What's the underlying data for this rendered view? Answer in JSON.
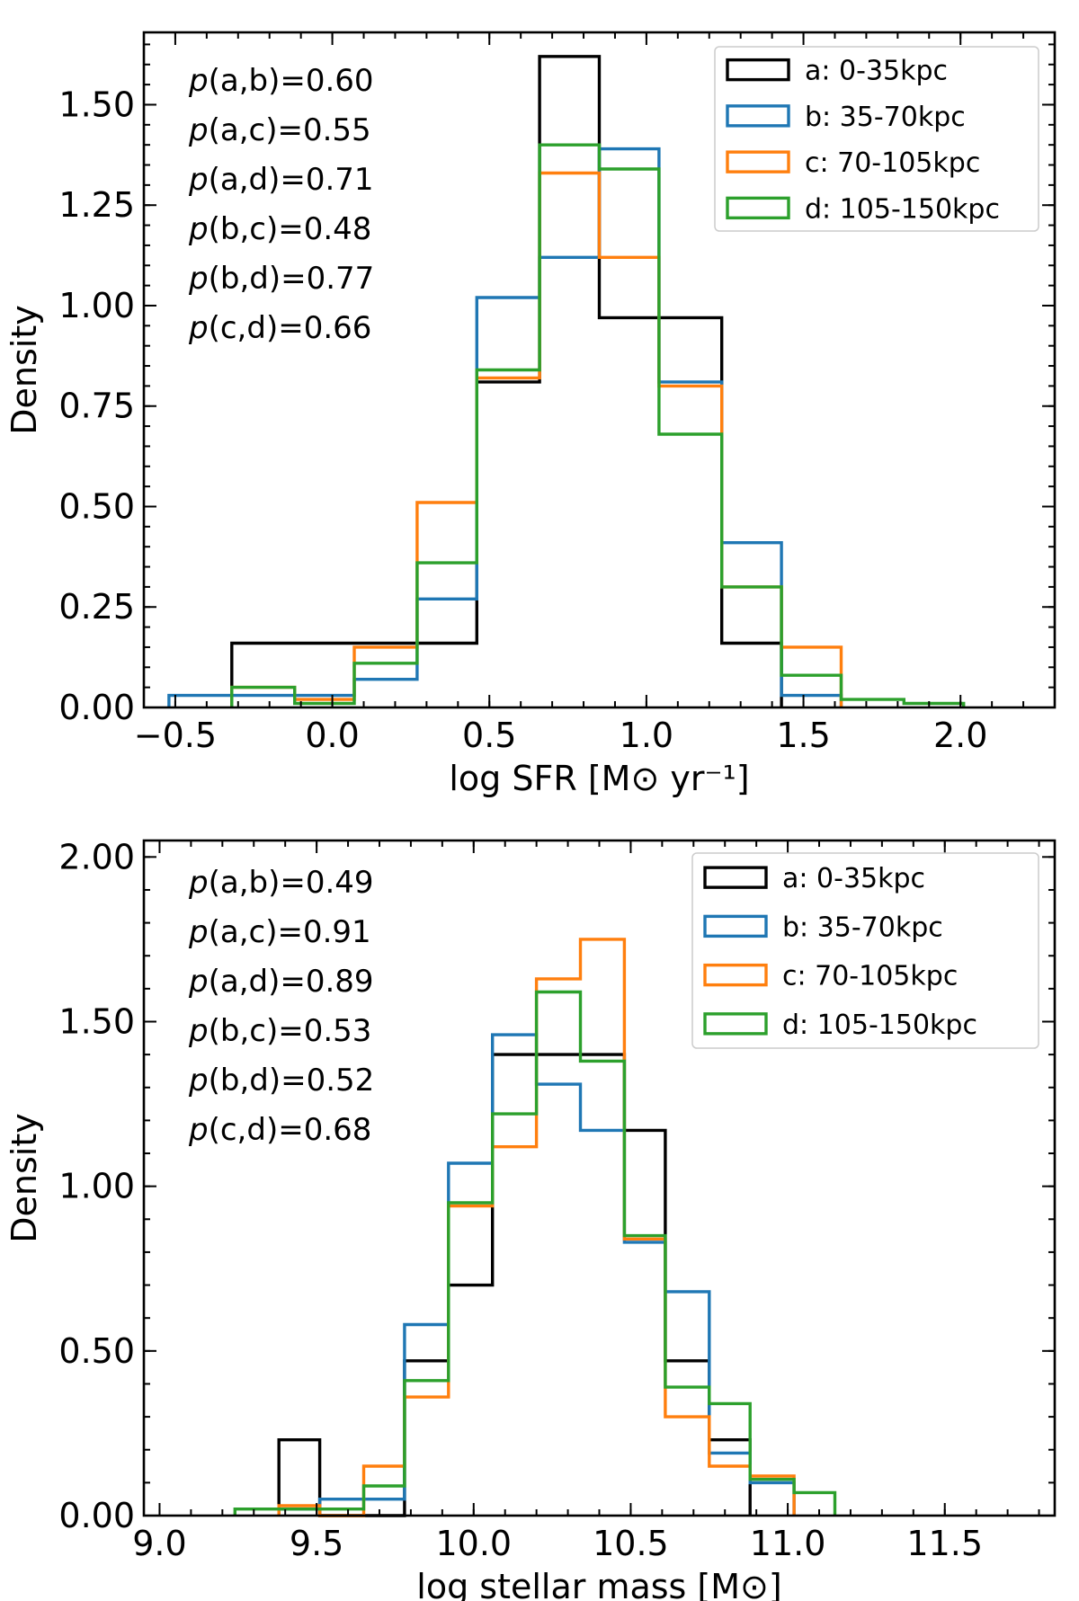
{
  "chart_data": [
    {
      "type": "histogram",
      "xlabel": "log SFR [M⊙ yr⁻¹]",
      "ylabel": "Density",
      "xlim": [
        -0.6,
        2.3
      ],
      "ylim": [
        0,
        1.68
      ],
      "xticks": [
        -0.5,
        0.0,
        0.5,
        1.0,
        1.5,
        2.0
      ],
      "xtick_labels": [
        "−0.5",
        "0.0",
        "0.5",
        "1.0",
        "1.5",
        "2.0"
      ],
      "yticks": [
        0.0,
        0.25,
        0.5,
        0.75,
        1.0,
        1.25,
        1.5
      ],
      "ytick_labels": [
        "0.00",
        "0.25",
        "0.50",
        "0.75",
        "1.00",
        "1.25",
        "1.50"
      ],
      "legend_position": "top-right",
      "annotations": [
        "(a,b)=0.60",
        "(a,c)=0.55",
        "(a,d)=0.71",
        "(b,c)=0.48",
        "(b,d)=0.77",
        "(c,d)=0.66"
      ],
      "annotation_prefix": "p",
      "series": [
        {
          "name": "a: 0-35kpc",
          "color": "#000000",
          "edges": [
            -0.32,
            -0.12,
            0.07,
            0.27,
            0.46,
            0.66,
            0.85,
            1.04,
            1.24,
            1.43
          ],
          "values": [
            0.16,
            0.16,
            0.16,
            0.16,
            0.81,
            1.62,
            0.97,
            0.97,
            0.16
          ]
        },
        {
          "name": "b: 35-70kpc",
          "color": "#1f77b4",
          "edges": [
            -0.52,
            -0.32,
            -0.12,
            0.07,
            0.27,
            0.46,
            0.66,
            0.85,
            1.04,
            1.24,
            1.43,
            1.62
          ],
          "values": [
            0.03,
            0.03,
            0.03,
            0.07,
            0.27,
            1.02,
            1.12,
            1.39,
            0.81,
            0.41,
            0.03
          ]
        },
        {
          "name": "c: 70-105kpc",
          "color": "#ff7f0e",
          "edges": [
            -0.32,
            -0.12,
            0.07,
            0.27,
            0.46,
            0.66,
            0.85,
            1.04,
            1.24,
            1.43,
            1.62
          ],
          "values": [
            0.05,
            0.02,
            0.15,
            0.51,
            0.82,
            1.33,
            1.12,
            0.8,
            0.3,
            0.15
          ]
        },
        {
          "name": "d: 105-150kpc",
          "color": "#2ca02c",
          "edges": [
            -0.32,
            -0.12,
            0.07,
            0.27,
            0.46,
            0.66,
            0.85,
            1.04,
            1.24,
            1.43,
            1.62,
            1.82,
            2.01
          ],
          "values": [
            0.05,
            0.01,
            0.11,
            0.36,
            0.84,
            1.4,
            1.34,
            0.68,
            0.3,
            0.08,
            0.02,
            0.01
          ]
        }
      ]
    },
    {
      "type": "histogram",
      "xlabel": "log stellar mass [M⊙]",
      "ylabel": "Density",
      "xlim": [
        8.95,
        11.85
      ],
      "ylim": [
        0,
        2.05
      ],
      "xticks": [
        9.0,
        9.5,
        10.0,
        10.5,
        11.0,
        11.5
      ],
      "xtick_labels": [
        "9.0",
        "9.5",
        "10.0",
        "10.5",
        "11.0",
        "11.5"
      ],
      "yticks": [
        0.0,
        0.5,
        1.0,
        1.5,
        2.0
      ],
      "ytick_labels": [
        "0.00",
        "0.50",
        "1.00",
        "1.50",
        "2.00"
      ],
      "legend_position": "top-right",
      "annotations": [
        "(a,b)=0.49",
        "(a,c)=0.91",
        "(a,d)=0.89",
        "(b,c)=0.53",
        "(b,d)=0.52",
        "(c,d)=0.68"
      ],
      "annotation_prefix": "p",
      "series": [
        {
          "name": "a: 0-35kpc",
          "color": "#000000",
          "edges": [
            9.38,
            9.51,
            9.65,
            9.78,
            9.92,
            10.06,
            10.2,
            10.34,
            10.48,
            10.61,
            10.75,
            10.88
          ],
          "values": [
            0.23,
            0.0,
            0.0,
            0.47,
            0.7,
            1.4,
            1.4,
            1.4,
            1.17,
            0.47,
            0.23
          ]
        },
        {
          "name": "b: 35-70kpc",
          "color": "#1f77b4",
          "edges": [
            9.38,
            9.51,
            9.65,
            9.78,
            9.92,
            10.06,
            10.2,
            10.34,
            10.48,
            10.61,
            10.75,
            10.88,
            11.02
          ],
          "values": [
            0.02,
            0.05,
            0.05,
            0.58,
            1.07,
            1.46,
            1.31,
            1.17,
            0.83,
            0.68,
            0.19,
            0.1
          ]
        },
        {
          "name": "c: 70-105kpc",
          "color": "#ff7f0e",
          "edges": [
            9.38,
            9.51,
            9.65,
            9.78,
            9.92,
            10.06,
            10.2,
            10.34,
            10.48,
            10.61,
            10.75,
            10.88,
            11.02
          ],
          "values": [
            0.03,
            0.0,
            0.15,
            0.36,
            0.94,
            1.12,
            1.63,
            1.75,
            0.84,
            0.3,
            0.15,
            0.12
          ]
        },
        {
          "name": "d: 105-150kpc",
          "color": "#2ca02c",
          "edges": [
            9.24,
            9.38,
            9.51,
            9.65,
            9.78,
            9.92,
            10.06,
            10.2,
            10.34,
            10.48,
            10.61,
            10.75,
            10.88,
            11.02,
            11.15
          ],
          "values": [
            0.02,
            0.02,
            0.02,
            0.09,
            0.41,
            0.95,
            1.22,
            1.59,
            1.38,
            0.85,
            0.39,
            0.34,
            0.11,
            0.07
          ]
        }
      ]
    }
  ]
}
